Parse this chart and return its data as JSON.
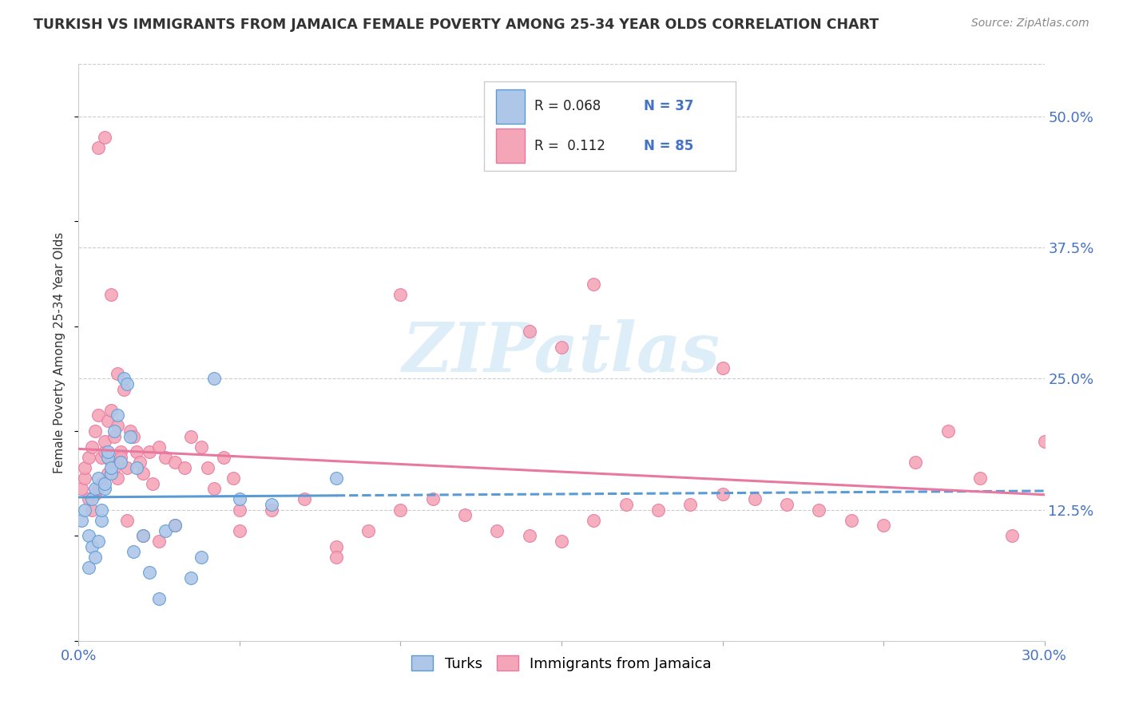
{
  "title": "TURKISH VS IMMIGRANTS FROM JAMAICA FEMALE POVERTY AMONG 25-34 YEAR OLDS CORRELATION CHART",
  "source": "Source: ZipAtlas.com",
  "ylabel": "Female Poverty Among 25-34 Year Olds",
  "xlim": [
    0.0,
    0.3
  ],
  "ylim": [
    0.0,
    0.55
  ],
  "watermark": "ZIPatlas",
  "color_blue": "#aec7e8",
  "color_pink": "#f4a6b8",
  "color_blue_dark": "#5b9bd5",
  "color_pink_dark": "#e878a0",
  "color_axis_blue": "#4472c4",
  "turks_x": [
    0.001,
    0.002,
    0.003,
    0.004,
    0.004,
    0.005,
    0.006,
    0.006,
    0.007,
    0.007,
    0.008,
    0.008,
    0.009,
    0.009,
    0.01,
    0.01,
    0.011,
    0.012,
    0.013,
    0.014,
    0.015,
    0.016,
    0.017,
    0.018,
    0.02,
    0.022,
    0.025,
    0.027,
    0.03,
    0.035,
    0.038,
    0.042,
    0.05,
    0.06,
    0.08,
    0.003,
    0.005
  ],
  "turks_y": [
    0.115,
    0.125,
    0.1,
    0.09,
    0.135,
    0.145,
    0.095,
    0.155,
    0.115,
    0.125,
    0.145,
    0.15,
    0.175,
    0.18,
    0.16,
    0.165,
    0.2,
    0.215,
    0.17,
    0.25,
    0.245,
    0.195,
    0.085,
    0.165,
    0.1,
    0.065,
    0.04,
    0.105,
    0.11,
    0.06,
    0.08,
    0.25,
    0.135,
    0.13,
    0.155,
    0.07,
    0.08
  ],
  "jamaica_x": [
    0.001,
    0.002,
    0.002,
    0.003,
    0.003,
    0.004,
    0.004,
    0.005,
    0.005,
    0.006,
    0.006,
    0.007,
    0.007,
    0.008,
    0.008,
    0.009,
    0.009,
    0.01,
    0.01,
    0.011,
    0.011,
    0.012,
    0.012,
    0.013,
    0.013,
    0.014,
    0.015,
    0.016,
    0.017,
    0.018,
    0.019,
    0.02,
    0.022,
    0.023,
    0.025,
    0.027,
    0.03,
    0.033,
    0.035,
    0.038,
    0.04,
    0.042,
    0.045,
    0.048,
    0.05,
    0.06,
    0.07,
    0.08,
    0.09,
    0.1,
    0.11,
    0.12,
    0.13,
    0.14,
    0.15,
    0.16,
    0.17,
    0.18,
    0.19,
    0.2,
    0.21,
    0.22,
    0.23,
    0.24,
    0.25,
    0.26,
    0.27,
    0.28,
    0.29,
    0.3,
    0.1,
    0.15,
    0.2,
    0.16,
    0.14,
    0.006,
    0.008,
    0.01,
    0.012,
    0.015,
    0.02,
    0.025,
    0.03,
    0.05,
    0.08
  ],
  "jamaica_y": [
    0.145,
    0.155,
    0.165,
    0.135,
    0.175,
    0.125,
    0.185,
    0.14,
    0.2,
    0.145,
    0.215,
    0.15,
    0.175,
    0.18,
    0.19,
    0.16,
    0.21,
    0.17,
    0.22,
    0.165,
    0.195,
    0.155,
    0.205,
    0.18,
    0.175,
    0.24,
    0.165,
    0.2,
    0.195,
    0.18,
    0.17,
    0.16,
    0.18,
    0.15,
    0.185,
    0.175,
    0.17,
    0.165,
    0.195,
    0.185,
    0.165,
    0.145,
    0.175,
    0.155,
    0.125,
    0.125,
    0.135,
    0.09,
    0.105,
    0.125,
    0.135,
    0.12,
    0.105,
    0.1,
    0.095,
    0.115,
    0.13,
    0.125,
    0.13,
    0.14,
    0.135,
    0.13,
    0.125,
    0.115,
    0.11,
    0.17,
    0.2,
    0.155,
    0.1,
    0.19,
    0.33,
    0.28,
    0.26,
    0.34,
    0.295,
    0.47,
    0.48,
    0.33,
    0.255,
    0.115,
    0.1,
    0.095,
    0.11,
    0.105,
    0.08
  ]
}
